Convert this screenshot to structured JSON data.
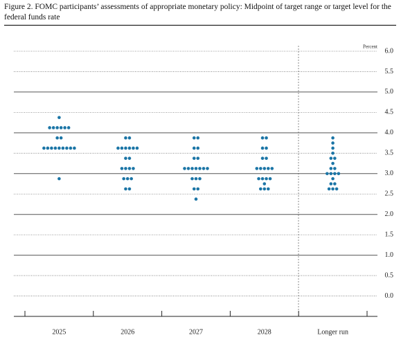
{
  "chart_data": {
    "type": "dot",
    "title": "Figure 2. FOMC participants’ assessments of appropriate monetary policy: Midpoint of target range or target level for the federal funds rate",
    "y_unit_label": "Percent",
    "categories": [
      "2025",
      "2026",
      "2027",
      "2028",
      "Longer run"
    ],
    "values": [
      [
        4.375,
        4.125,
        4.125,
        4.125,
        4.125,
        4.125,
        4.125,
        3.875,
        3.875,
        3.625,
        3.625,
        3.625,
        3.625,
        3.625,
        3.625,
        3.625,
        3.625,
        3.625,
        2.875
      ],
      [
        3.875,
        3.875,
        3.625,
        3.625,
        3.625,
        3.625,
        3.625,
        3.625,
        3.375,
        3.375,
        3.125,
        3.125,
        3.125,
        3.125,
        2.875,
        2.875,
        2.875,
        2.625,
        2.625
      ],
      [
        3.875,
        3.875,
        3.625,
        3.625,
        3.375,
        3.375,
        3.125,
        3.125,
        3.125,
        3.125,
        3.125,
        3.125,
        3.125,
        2.875,
        2.875,
        2.875,
        2.625,
        2.625,
        2.375
      ],
      [
        3.875,
        3.875,
        3.625,
        3.625,
        3.375,
        3.375,
        3.125,
        3.125,
        3.125,
        3.125,
        3.125,
        2.875,
        2.875,
        2.875,
        2.875,
        2.75,
        2.625,
        2.625,
        2.625
      ],
      [
        3.875,
        3.75,
        3.625,
        3.5,
        3.375,
        3.375,
        3.25,
        3.125,
        3.125,
        3.0,
        3.0,
        3.0,
        3.0,
        2.875,
        2.75,
        2.75,
        2.625,
        2.625,
        2.625
      ]
    ],
    "color": "#1b75a6",
    "ylim": [
      -0.5,
      6
    ],
    "yticks": [
      {
        "value": 0,
        "label": "0.0"
      },
      0.5,
      {
        "value": 1,
        "label": "1.0"
      },
      1.5,
      {
        "value": 2,
        "label": "2.0"
      },
      2.5,
      {
        "value": 3,
        "label": "3.0"
      },
      3.5,
      {
        "value": 4,
        "label": "4.0"
      },
      4.5,
      {
        "value": 5,
        "label": "5.0"
      },
      5.5,
      {
        "value": 6,
        "label": "6.0"
      }
    ],
    "grid": true
  }
}
